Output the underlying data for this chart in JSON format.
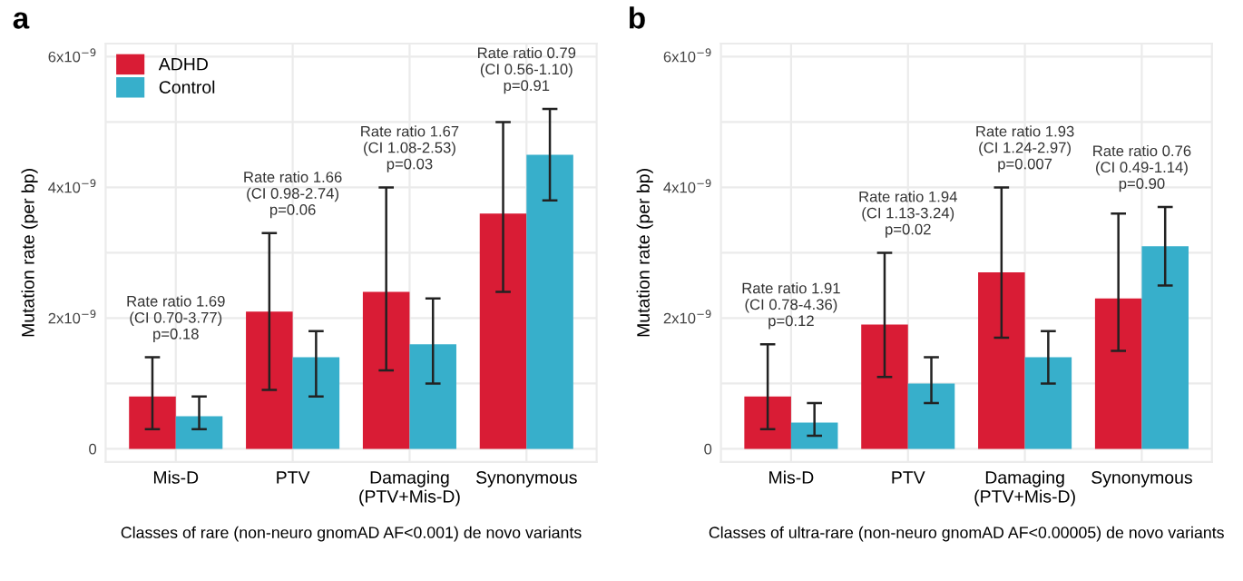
{
  "chart_data": [
    {
      "type": "bar",
      "title": "a",
      "xlabel": "Classes of rare (non-neuro gnomAD AF<0.001) de novo variants",
      "ylabel": "Mutation rate (per bp)",
      "categories": [
        "Mis-D",
        "PTV",
        "Damaging\n(PTV+Mis-D)",
        "Synonymous"
      ],
      "series": [
        {
          "name": "ADHD",
          "color": "#d91c35",
          "values": [
            8e-10,
            2.1e-09,
            2.4e-09,
            3.6e-09
          ],
          "errors": [
            [
              3e-10,
              1.4e-09
            ],
            [
              9e-10,
              3.3e-09
            ],
            [
              1.2e-09,
              4e-09
            ],
            [
              2.4e-09,
              5e-09
            ]
          ]
        },
        {
          "name": "Control",
          "color": "#37afcb",
          "values": [
            5e-10,
            1.4e-09,
            1.6e-09,
            4.5e-09
          ],
          "errors": [
            [
              3e-10,
              8e-10
            ],
            [
              8e-10,
              1.8e-09
            ],
            [
              1e-09,
              2.3e-09
            ],
            [
              3.8e-09,
              5.2e-09
            ]
          ]
        }
      ],
      "ylim": [
        -2e-10,
        6.2e-09
      ],
      "yticks": [
        {
          "value": 0,
          "label": "0"
        },
        {
          "value": 1e-09,
          "label": null
        },
        {
          "value": 2e-09,
          "label": "2x10$^{−9}$"
        },
        {
          "value": 3e-09,
          "label": null
        },
        {
          "value": 4e-09,
          "label": "4x10$^{−9}$"
        },
        {
          "value": 5e-09,
          "label": null
        },
        {
          "value": 6e-09,
          "label": "6x10$^{−9}$"
        }
      ],
      "grid": true,
      "legend": "top left",
      "annotations": [
        "Rate ratio 1.69\n(CI 0.70-3.77)\np=0.18",
        "Rate ratio 1.66\n(CI 0.98-2.74)\np=0.06",
        "Rate ratio 1.67\n(CI 1.08-2.53)\np=0.03",
        "Rate ratio 0.79\n(CI 0.56-1.10)\np=0.91"
      ]
    },
    {
      "type": "bar",
      "title": "b",
      "xlabel": "Classes of ultra-rare (non-neuro gnomAD AF<0.00005) de novo variants",
      "ylabel": "Mutation rate (per bp)",
      "categories": [
        "Mis-D",
        "PTV",
        "Damaging\n(PTV+Mis-D)",
        "Synonymous"
      ],
      "series": [
        {
          "color": "#d91c35",
          "values": [
            8e-10,
            1.9e-09,
            2.7e-09,
            2.3e-09
          ],
          "errors": [
            [
              3e-10,
              1.6e-09
            ],
            [
              1.1e-09,
              3e-09
            ],
            [
              1.7e-09,
              4e-09
            ],
            [
              1.5e-09,
              3.6e-09
            ]
          ]
        },
        {
          "color": "#37afcb",
          "values": [
            4e-10,
            1e-09,
            1.4e-09,
            3.1e-09
          ],
          "errors": [
            [
              2e-10,
              7e-10
            ],
            [
              7e-10,
              1.4e-09
            ],
            [
              1e-09,
              1.8e-09
            ],
            [
              2.5e-09,
              3.7e-09
            ]
          ]
        }
      ],
      "ylim": [
        -2e-10,
        6.2e-09
      ],
      "yticks": [
        {
          "value": 0,
          "label": "0"
        },
        {
          "value": 1e-09,
          "label": null
        },
        {
          "value": 2e-09,
          "label": "2x10$^{−9}$"
        },
        {
          "value": 3e-09,
          "label": null
        },
        {
          "value": 4e-09,
          "label": "4x10$^{−9}$"
        },
        {
          "value": 5e-09,
          "label": null
        },
        {
          "value": 6e-09,
          "label": "6x10$^{−9}$"
        }
      ],
      "grid": true,
      "annotations": [
        "Rate ratio 1.91\n(CI 0.78-4.36)\np=0.12",
        "Rate ratio 1.94\n(CI 1.13-3.24)\np=0.02",
        "Rate ratio 1.93\n(CI 1.24-2.97)\np=0.007",
        "Rate ratio 0.76\n(CI 0.49-1.14)\np=0.90"
      ]
    }
  ]
}
